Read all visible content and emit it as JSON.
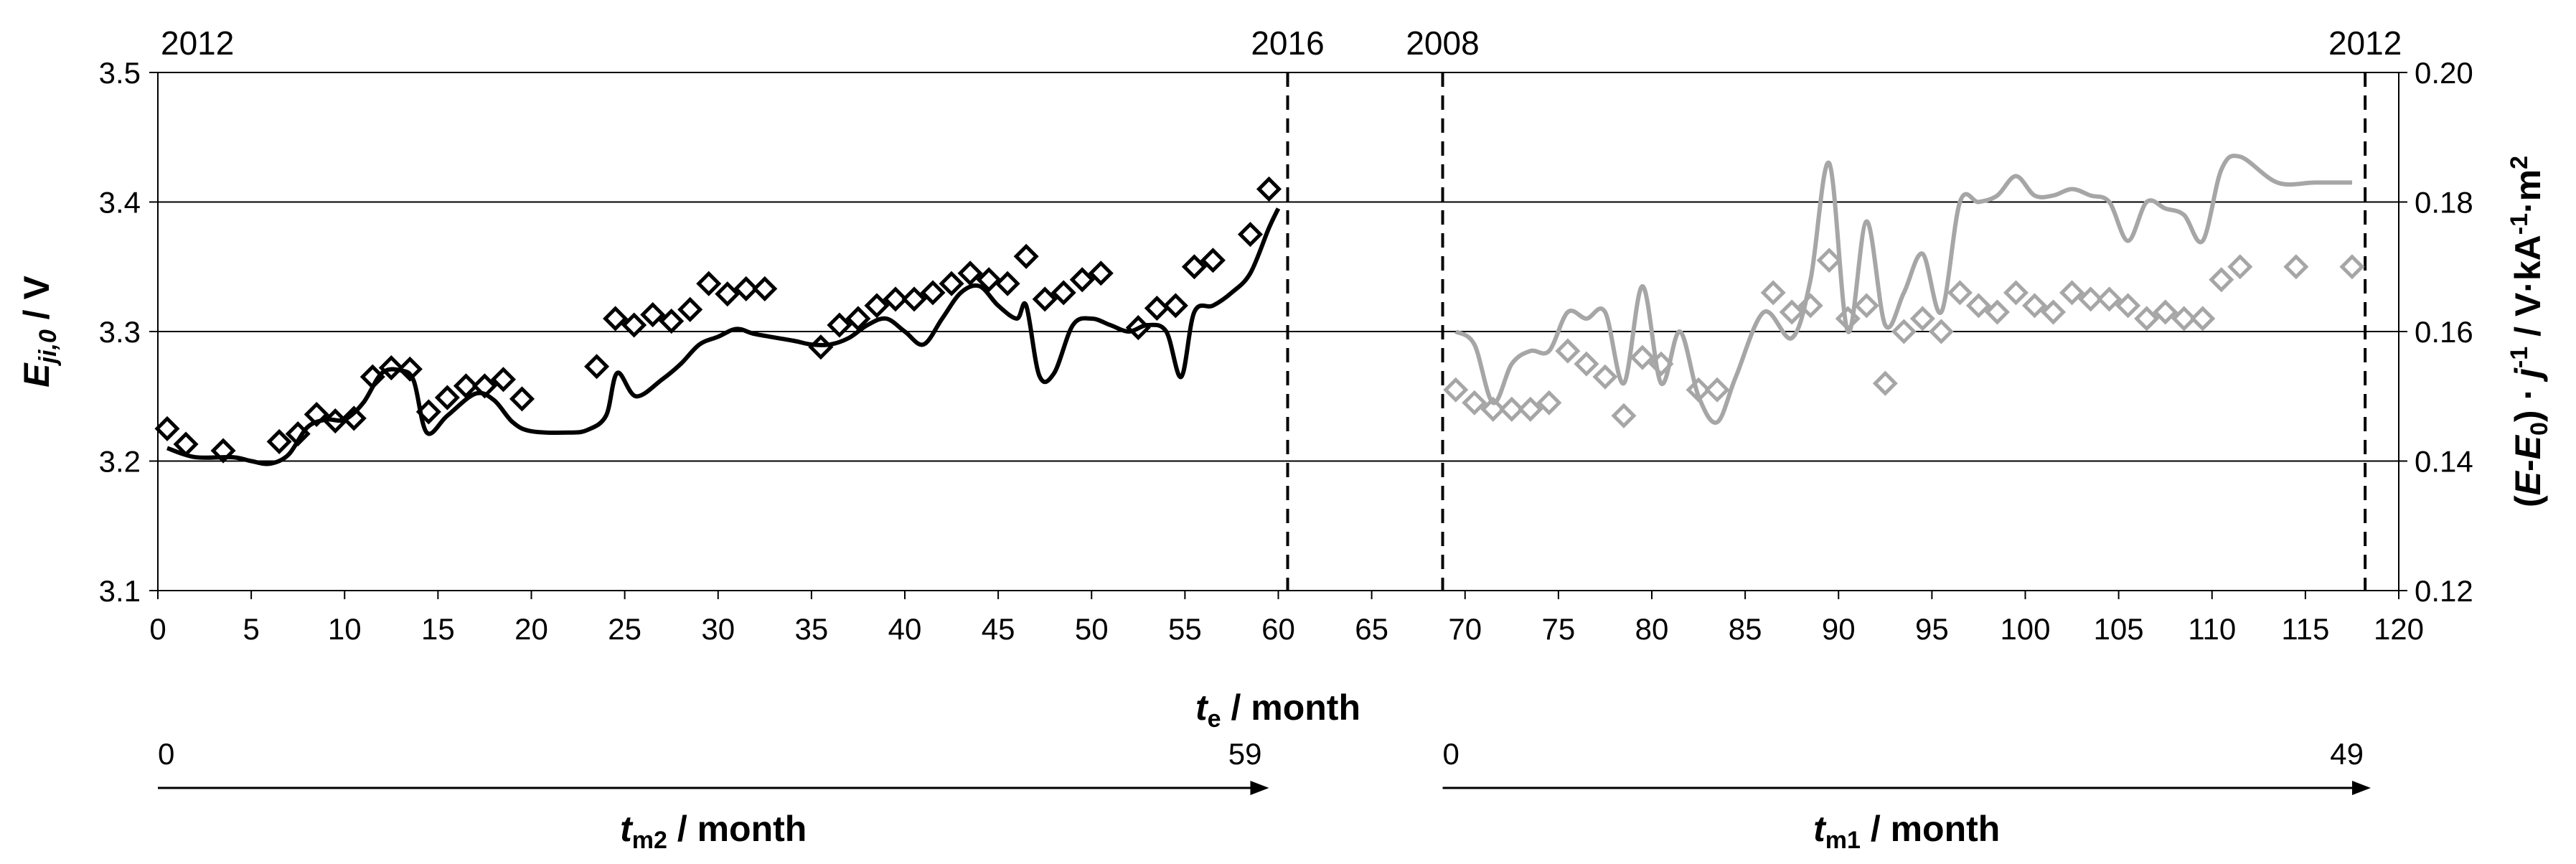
{
  "chart_data": {
    "type": "scatter",
    "title": "",
    "xlabel": "t_e / month",
    "xlabel_main": "t",
    "xlabel_sub": "e",
    "xlabel_rest": " / month",
    "x_ticks": [
      "0",
      "5",
      "10",
      "15",
      "20",
      "25",
      "30",
      "35",
      "40",
      "45",
      "50",
      "55",
      "60",
      "65",
      "70",
      "75",
      "80",
      "85",
      "90",
      "95",
      "100",
      "105",
      "110",
      "115",
      "120"
    ],
    "xlim": [
      0,
      120
    ],
    "ylabel_left_main": "E",
    "ylabel_left_sub": "ji,0",
    "ylabel_left_rest": "  / V",
    "ylim_left": [
      3.1,
      3.5
    ],
    "y_ticks_left": [
      "3.1",
      "3.2",
      "3.3",
      "3.4",
      "3.5"
    ],
    "ylabel_right_parts": [
      "(",
      "E",
      "-",
      "E",
      "0",
      ") · ",
      "j",
      "-1",
      " / V·kA",
      "-1",
      "·m",
      "2"
    ],
    "ylim_right": [
      0.12,
      0.2
    ],
    "y_ticks_right": [
      "0.12",
      "0.14",
      "0.16",
      "0.18",
      "0.20"
    ],
    "grid": "horizontal",
    "year_markers": [
      {
        "label": "2012",
        "x": 0,
        "dashed": false
      },
      {
        "label": "2016",
        "x": 60.5,
        "dashed": true
      },
      {
        "label": "2008",
        "x": 68.8,
        "dashed": true
      },
      {
        "label": "2012",
        "x": 118.2,
        "dashed": true
      }
    ],
    "secondary_axes": [
      {
        "start_label": "0",
        "end_label": "59",
        "x_start": 0,
        "x_end": 59.5,
        "label_main": "t",
        "label_sub": "m2",
        "label_rest": " / month"
      },
      {
        "start_label": "0",
        "end_label": "49",
        "x_start": 68.8,
        "x_end": 118.5,
        "label_main": "t",
        "label_sub": "m1",
        "label_rest": " / month"
      }
    ],
    "series": [
      {
        "color": "#000000",
        "marker": "diamond",
        "axis": "left",
        "points": [
          [
            0.5,
            3.225
          ],
          [
            1.5,
            3.213
          ],
          [
            3.5,
            3.208
          ],
          [
            6.5,
            3.215
          ],
          [
            7.5,
            3.221
          ],
          [
            8.5,
            3.236
          ],
          [
            9.5,
            3.231
          ],
          [
            10.5,
            3.233
          ],
          [
            11.5,
            3.265
          ],
          [
            12.5,
            3.272
          ],
          [
            13.5,
            3.271
          ],
          [
            14.5,
            3.238
          ],
          [
            15.5,
            3.249
          ],
          [
            16.5,
            3.258
          ],
          [
            17.5,
            3.258
          ],
          [
            18.5,
            3.263
          ],
          [
            19.5,
            3.248
          ],
          [
            23.5,
            3.273
          ],
          [
            24.5,
            3.31
          ],
          [
            25.5,
            3.305
          ],
          [
            26.5,
            3.313
          ],
          [
            27.5,
            3.308
          ],
          [
            28.5,
            3.317
          ],
          [
            29.5,
            3.337
          ],
          [
            30.5,
            3.329
          ],
          [
            31.5,
            3.333
          ],
          [
            32.5,
            3.333
          ],
          [
            35.5,
            3.288
          ],
          [
            36.5,
            3.305
          ],
          [
            37.5,
            3.31
          ],
          [
            38.5,
            3.32
          ],
          [
            39.5,
            3.325
          ],
          [
            40.5,
            3.325
          ],
          [
            41.5,
            3.33
          ],
          [
            42.5,
            3.337
          ],
          [
            43.5,
            3.345
          ],
          [
            44.5,
            3.34
          ],
          [
            45.5,
            3.337
          ],
          [
            46.5,
            3.358
          ],
          [
            47.5,
            3.325
          ],
          [
            48.5,
            3.33
          ],
          [
            49.5,
            3.34
          ],
          [
            50.5,
            3.345
          ],
          [
            52.5,
            3.303
          ],
          [
            53.5,
            3.318
          ],
          [
            54.5,
            3.32
          ],
          [
            55.5,
            3.35
          ],
          [
            56.5,
            3.355
          ],
          [
            58.5,
            3.375
          ],
          [
            59.5,
            3.41
          ]
        ]
      },
      {
        "color": "#000000",
        "marker": "line",
        "axis": "left",
        "points": [
          [
            0.5,
            3.21
          ],
          [
            2,
            3.203
          ],
          [
            4,
            3.203
          ],
          [
            5,
            3.2
          ],
          [
            6,
            3.198
          ],
          [
            7,
            3.205
          ],
          [
            8,
            3.226
          ],
          [
            9,
            3.232
          ],
          [
            10,
            3.232
          ],
          [
            11,
            3.245
          ],
          [
            12,
            3.268
          ],
          [
            13,
            3.27
          ],
          [
            13.7,
            3.262
          ],
          [
            14.4,
            3.222
          ],
          [
            15.5,
            3.235
          ],
          [
            17,
            3.252
          ],
          [
            18,
            3.247
          ],
          [
            19,
            3.23
          ],
          [
            20,
            3.223
          ],
          [
            22,
            3.222
          ],
          [
            23,
            3.224
          ],
          [
            24,
            3.235
          ],
          [
            24.6,
            3.268
          ],
          [
            25.6,
            3.25
          ],
          [
            27,
            3.263
          ],
          [
            28,
            3.275
          ],
          [
            29,
            3.29
          ],
          [
            30,
            3.296
          ],
          [
            31,
            3.302
          ],
          [
            32,
            3.298
          ],
          [
            34,
            3.293
          ],
          [
            35,
            3.29
          ],
          [
            36,
            3.29
          ],
          [
            37,
            3.295
          ],
          [
            38,
            3.305
          ],
          [
            39,
            3.31
          ],
          [
            40,
            3.3
          ],
          [
            41,
            3.29
          ],
          [
            42,
            3.31
          ],
          [
            43,
            3.33
          ],
          [
            44,
            3.335
          ],
          [
            45,
            3.32
          ],
          [
            46,
            3.31
          ],
          [
            46.5,
            3.32
          ],
          [
            47.2,
            3.266
          ],
          [
            48,
            3.268
          ],
          [
            49,
            3.305
          ],
          [
            50,
            3.31
          ],
          [
            51,
            3.305
          ],
          [
            52,
            3.3
          ],
          [
            53,
            3.305
          ],
          [
            54,
            3.3
          ],
          [
            54.8,
            3.265
          ],
          [
            55.5,
            3.315
          ],
          [
            56.5,
            3.32
          ],
          [
            57.5,
            3.33
          ],
          [
            58.5,
            3.345
          ],
          [
            59.5,
            3.38
          ],
          [
            60,
            3.395
          ]
        ]
      },
      {
        "color": "#a6a6a6",
        "marker": "diamond",
        "axis": "right",
        "points": [
          [
            69.5,
            0.151
          ],
          [
            70.5,
            0.149
          ],
          [
            71.5,
            0.148
          ],
          [
            72.5,
            0.148
          ],
          [
            73.5,
            0.148
          ],
          [
            74.5,
            0.149
          ],
          [
            75.5,
            0.157
          ],
          [
            76.5,
            0.155
          ],
          [
            77.5,
            0.153
          ],
          [
            78.5,
            0.147
          ],
          [
            79.5,
            0.156
          ],
          [
            80.5,
            0.155
          ],
          [
            82.5,
            0.151
          ],
          [
            83.5,
            0.151
          ],
          [
            86.5,
            0.166
          ],
          [
            87.5,
            0.163
          ],
          [
            88.5,
            0.164
          ],
          [
            89.5,
            0.171
          ],
          [
            90.5,
            0.162
          ],
          [
            91.5,
            0.164
          ],
          [
            92.5,
            0.152
          ],
          [
            93.5,
            0.16
          ],
          [
            94.5,
            0.162
          ],
          [
            95.5,
            0.16
          ],
          [
            96.5,
            0.166
          ],
          [
            97.5,
            0.164
          ],
          [
            98.5,
            0.163
          ],
          [
            99.5,
            0.166
          ],
          [
            100.5,
            0.164
          ],
          [
            101.5,
            0.163
          ],
          [
            102.5,
            0.166
          ],
          [
            103.5,
            0.165
          ],
          [
            104.5,
            0.165
          ],
          [
            105.5,
            0.164
          ],
          [
            106.5,
            0.162
          ],
          [
            107.5,
            0.163
          ],
          [
            108.5,
            0.162
          ],
          [
            109.5,
            0.162
          ],
          [
            110.5,
            0.168
          ],
          [
            111.5,
            0.17
          ],
          [
            114.5,
            0.17
          ],
          [
            117.5,
            0.17
          ]
        ]
      },
      {
        "color": "#a6a6a6",
        "marker": "line",
        "axis": "right",
        "points": [
          [
            69.5,
            0.16
          ],
          [
            70.5,
            0.158
          ],
          [
            71.5,
            0.149
          ],
          [
            72.5,
            0.155
          ],
          [
            73.5,
            0.157
          ],
          [
            74.5,
            0.157
          ],
          [
            75.5,
            0.163
          ],
          [
            76.5,
            0.162
          ],
          [
            77.5,
            0.163
          ],
          [
            78.5,
            0.152
          ],
          [
            79.5,
            0.167
          ],
          [
            80.5,
            0.152
          ],
          [
            81.5,
            0.16
          ],
          [
            82.5,
            0.15
          ],
          [
            83.5,
            0.146
          ],
          [
            84.5,
            0.153
          ],
          [
            86,
            0.163
          ],
          [
            87.5,
            0.159
          ],
          [
            88.5,
            0.168
          ],
          [
            89.5,
            0.186
          ],
          [
            90.5,
            0.16
          ],
          [
            91.5,
            0.177
          ],
          [
            92.5,
            0.161
          ],
          [
            93.5,
            0.166
          ],
          [
            94.5,
            0.172
          ],
          [
            95.5,
            0.163
          ],
          [
            96.5,
            0.18
          ],
          [
            97.5,
            0.18
          ],
          [
            98.5,
            0.181
          ],
          [
            99.5,
            0.184
          ],
          [
            100.5,
            0.181
          ],
          [
            101.5,
            0.181
          ],
          [
            102.5,
            0.182
          ],
          [
            103.5,
            0.181
          ],
          [
            104.5,
            0.18
          ],
          [
            105.5,
            0.174
          ],
          [
            106.5,
            0.18
          ],
          [
            107.5,
            0.179
          ],
          [
            108.5,
            0.178
          ],
          [
            109.5,
            0.174
          ],
          [
            110.5,
            0.185
          ],
          [
            111.5,
            0.187
          ],
          [
            113.5,
            0.183
          ],
          [
            115.5,
            0.183
          ],
          [
            117.5,
            0.183
          ]
        ]
      }
    ]
  }
}
